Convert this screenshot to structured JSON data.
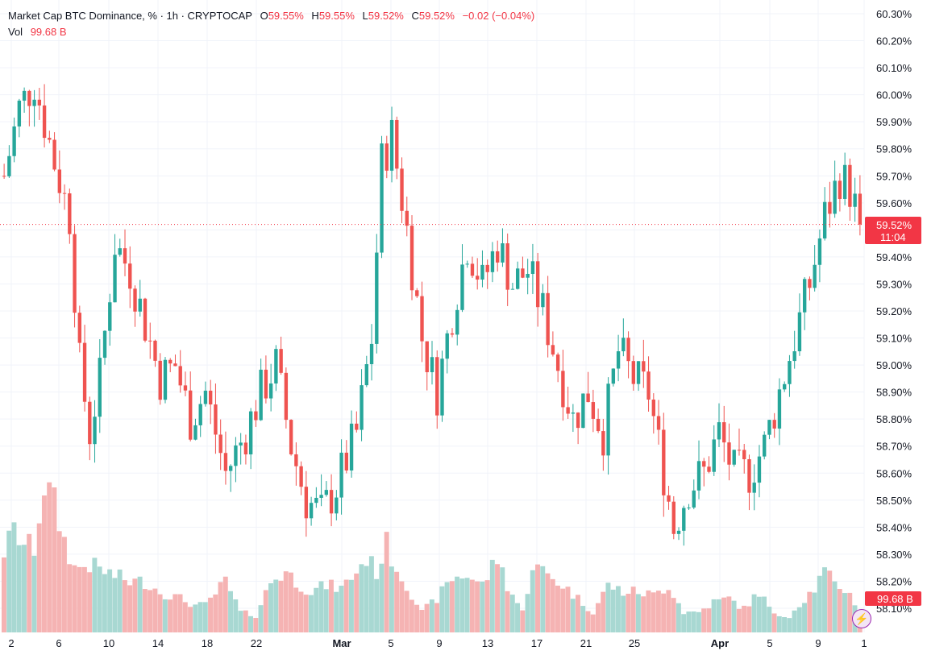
{
  "legend": {
    "title": "Market Cap BTC Dominance, % · 1h · CRYPTOCAP",
    "o_label": "O",
    "o_value": "59.55%",
    "h_label": "H",
    "h_value": "59.55%",
    "l_label": "L",
    "l_value": "59.52%",
    "c_label": "C",
    "c_value": "59.52%",
    "change": "−0.02 (−0.04%)",
    "vol_label": "Vol",
    "vol_value": "99.68 B"
  },
  "price_tag": {
    "value": "59.52%",
    "countdown": "11:04"
  },
  "volume_tag": {
    "value": "99.68 B"
  },
  "badge_icon": "lightning-icon",
  "colors": {
    "up": "#26a69a",
    "down": "#ef5350",
    "up_vol": "#a8d8d2",
    "down_vol": "#f5b3b3",
    "tag": "#f23645",
    "grid": "#f0f3fa"
  },
  "chart_data": {
    "type": "candlestick",
    "symbol": "CRYPTOCAP:BTC.D",
    "interval": "1h",
    "y_axis_ticks": [
      "60.30%",
      "60.20%",
      "60.10%",
      "60.00%",
      "59.90%",
      "59.80%",
      "59.70%",
      "59.60%",
      "59.50%",
      "59.40%",
      "59.30%",
      "59.20%",
      "59.10%",
      "59.00%",
      "58.90%",
      "58.80%",
      "58.70%",
      "58.60%",
      "58.50%",
      "58.40%",
      "58.30%",
      "58.20%",
      "58.10%"
    ],
    "ylim": [
      58.06,
      60.34
    ],
    "x_axis_ticks": [
      {
        "label": "2",
        "bold": false
      },
      {
        "label": "6",
        "bold": false
      },
      {
        "label": "10",
        "bold": false
      },
      {
        "label": "14",
        "bold": false
      },
      {
        "label": "18",
        "bold": false
      },
      {
        "label": "22",
        "bold": false
      },
      {
        "label": "Mar",
        "bold": true
      },
      {
        "label": "5",
        "bold": false
      },
      {
        "label": "9",
        "bold": false
      },
      {
        "label": "13",
        "bold": false
      },
      {
        "label": "17",
        "bold": false
      },
      {
        "label": "21",
        "bold": false
      },
      {
        "label": "25",
        "bold": false
      },
      {
        "label": "Apr",
        "bold": true
      },
      {
        "label": "5",
        "bold": false
      },
      {
        "label": "9",
        "bold": false
      },
      {
        "label": "1",
        "bold": false
      }
    ],
    "last_price": 59.52,
    "grid": true,
    "close_path": [
      {
        "i": 0,
        "v": 59.7
      },
      {
        "i": 3,
        "v": 59.95
      },
      {
        "i": 6,
        "v": 60.05
      },
      {
        "i": 10,
        "v": 59.75
      },
      {
        "i": 13,
        "v": 59.55
      },
      {
        "i": 15,
        "v": 59.0
      },
      {
        "i": 17,
        "v": 58.75
      },
      {
        "i": 19,
        "v": 58.95
      },
      {
        "i": 22,
        "v": 59.45
      },
      {
        "i": 25,
        "v": 59.35
      },
      {
        "i": 28,
        "v": 59.15
      },
      {
        "i": 31,
        "v": 58.95
      },
      {
        "i": 34,
        "v": 59.0
      },
      {
        "i": 37,
        "v": 58.8
      },
      {
        "i": 40,
        "v": 58.9
      },
      {
        "i": 44,
        "v": 58.6
      },
      {
        "i": 48,
        "v": 58.75
      },
      {
        "i": 51,
        "v": 58.9
      },
      {
        "i": 54,
        "v": 59.0
      },
      {
        "i": 57,
        "v": 58.7
      },
      {
        "i": 60,
        "v": 58.5
      },
      {
        "i": 63,
        "v": 58.45
      },
      {
        "i": 66,
        "v": 58.55
      },
      {
        "i": 70,
        "v": 58.75
      },
      {
        "i": 73,
        "v": 59.1
      },
      {
        "i": 75,
        "v": 59.75
      },
      {
        "i": 77,
        "v": 59.85
      },
      {
        "i": 80,
        "v": 59.5
      },
      {
        "i": 83,
        "v": 59.1
      },
      {
        "i": 86,
        "v": 58.9
      },
      {
        "i": 89,
        "v": 59.2
      },
      {
        "i": 92,
        "v": 59.45
      },
      {
        "i": 95,
        "v": 59.3
      },
      {
        "i": 98,
        "v": 59.45
      },
      {
        "i": 101,
        "v": 59.3
      },
      {
        "i": 104,
        "v": 59.35
      },
      {
        "i": 107,
        "v": 59.2
      },
      {
        "i": 110,
        "v": 59.0
      },
      {
        "i": 113,
        "v": 58.8
      },
      {
        "i": 116,
        "v": 58.9
      },
      {
        "i": 119,
        "v": 58.75
      },
      {
        "i": 122,
        "v": 59.05
      },
      {
        "i": 125,
        "v": 58.95
      },
      {
        "i": 128,
        "v": 58.9
      },
      {
        "i": 131,
        "v": 58.6
      },
      {
        "i": 133,
        "v": 58.4
      },
      {
        "i": 136,
        "v": 58.55
      },
      {
        "i": 139,
        "v": 58.6
      },
      {
        "i": 142,
        "v": 58.75
      },
      {
        "i": 145,
        "v": 58.6
      },
      {
        "i": 148,
        "v": 58.6
      },
      {
        "i": 151,
        "v": 58.7
      },
      {
        "i": 154,
        "v": 58.9
      },
      {
        "i": 157,
        "v": 59.1
      },
      {
        "i": 160,
        "v": 59.3
      },
      {
        "i": 163,
        "v": 59.55
      },
      {
        "i": 166,
        "v": 59.7
      },
      {
        "i": 168,
        "v": 59.65
      },
      {
        "i": 170,
        "v": 59.52
      }
    ],
    "volume_path": [
      {
        "i": 0,
        "v": 24
      },
      {
        "i": 2,
        "v": 30
      },
      {
        "i": 4,
        "v": 26
      },
      {
        "i": 6,
        "v": 25
      },
      {
        "i": 8,
        "v": 44
      },
      {
        "i": 10,
        "v": 38
      },
      {
        "i": 12,
        "v": 27
      },
      {
        "i": 14,
        "v": 19
      },
      {
        "i": 17,
        "v": 20
      },
      {
        "i": 20,
        "v": 18
      },
      {
        "i": 25,
        "v": 15
      },
      {
        "i": 28,
        "v": 15
      },
      {
        "i": 31,
        "v": 12
      },
      {
        "i": 35,
        "v": 10
      },
      {
        "i": 38,
        "v": 8
      },
      {
        "i": 40,
        "v": 8
      },
      {
        "i": 44,
        "v": 15
      },
      {
        "i": 47,
        "v": 6
      },
      {
        "i": 50,
        "v": 5
      },
      {
        "i": 53,
        "v": 15
      },
      {
        "i": 56,
        "v": 18
      },
      {
        "i": 58,
        "v": 15
      },
      {
        "i": 61,
        "v": 12
      },
      {
        "i": 64,
        "v": 14
      },
      {
        "i": 67,
        "v": 13
      },
      {
        "i": 70,
        "v": 18
      },
      {
        "i": 72,
        "v": 22
      },
      {
        "i": 74,
        "v": 18
      },
      {
        "i": 76,
        "v": 26
      },
      {
        "i": 78,
        "v": 19
      },
      {
        "i": 80,
        "v": 14
      },
      {
        "i": 83,
        "v": 6
      },
      {
        "i": 86,
        "v": 10
      },
      {
        "i": 89,
        "v": 16
      },
      {
        "i": 92,
        "v": 17
      },
      {
        "i": 95,
        "v": 14
      },
      {
        "i": 98,
        "v": 22
      },
      {
        "i": 100,
        "v": 14
      },
      {
        "i": 103,
        "v": 6
      },
      {
        "i": 105,
        "v": 20
      },
      {
        "i": 108,
        "v": 17
      },
      {
        "i": 111,
        "v": 14
      },
      {
        "i": 114,
        "v": 10
      },
      {
        "i": 117,
        "v": 6
      },
      {
        "i": 120,
        "v": 14
      },
      {
        "i": 123,
        "v": 12
      },
      {
        "i": 126,
        "v": 12
      },
      {
        "i": 129,
        "v": 11
      },
      {
        "i": 132,
        "v": 14
      },
      {
        "i": 135,
        "v": 6
      },
      {
        "i": 138,
        "v": 6
      },
      {
        "i": 141,
        "v": 9
      },
      {
        "i": 144,
        "v": 10
      },
      {
        "i": 147,
        "v": 7
      },
      {
        "i": 150,
        "v": 12
      },
      {
        "i": 153,
        "v": 5
      },
      {
        "i": 156,
        "v": 5
      },
      {
        "i": 159,
        "v": 10
      },
      {
        "i": 161,
        "v": 13
      },
      {
        "i": 163,
        "v": 18
      },
      {
        "i": 165,
        "v": 14
      },
      {
        "i": 167,
        "v": 13
      },
      {
        "i": 169,
        "v": 9
      },
      {
        "i": 170,
        "v": 6
      }
    ],
    "n_candles": 171
  }
}
